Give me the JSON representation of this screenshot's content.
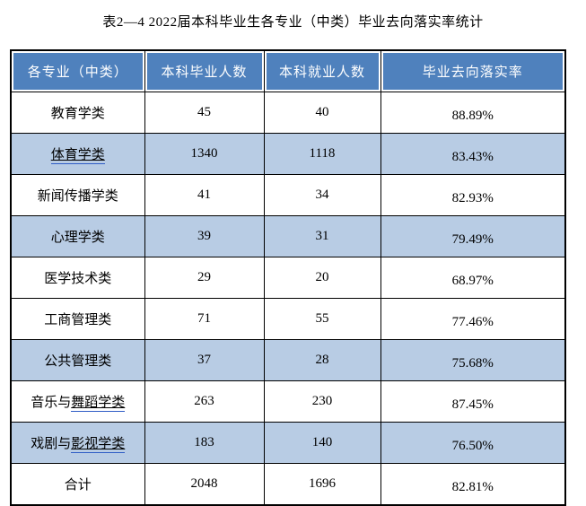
{
  "page": {
    "title": "表2—4 2022届本科毕业生各专业（中类）毕业去向落实率统计"
  },
  "table": {
    "headers": [
      "各专业（中类）",
      "本科毕业人数",
      "本科就业人数",
      "毕业去向落实率"
    ],
    "rows": [
      {
        "major_plain": "教育学类",
        "major_linked": "",
        "graduates": "45",
        "employed": "40",
        "rate": "88.89%",
        "shaded": false
      },
      {
        "major_plain": "",
        "major_linked": "体育学类",
        "graduates": "1340",
        "employed": "1118",
        "rate": "83.43%",
        "shaded": true
      },
      {
        "major_plain": "新闻传播学类",
        "major_linked": "",
        "graduates": "41",
        "employed": "34",
        "rate": "82.93%",
        "shaded": false
      },
      {
        "major_plain": "心理学类",
        "major_linked": "",
        "graduates": "39",
        "employed": "31",
        "rate": "79.49%",
        "shaded": true
      },
      {
        "major_plain": "医学技术类",
        "major_linked": "",
        "graduates": "29",
        "employed": "20",
        "rate": "68.97%",
        "shaded": false
      },
      {
        "major_plain": "工商管理类",
        "major_linked": "",
        "graduates": "71",
        "employed": "55",
        "rate": "77.46%",
        "shaded": false
      },
      {
        "major_plain": "公共管理类",
        "major_linked": "",
        "graduates": "37",
        "employed": "28",
        "rate": "75.68%",
        "shaded": true
      },
      {
        "major_plain": "音乐与",
        "major_linked": "舞蹈学类",
        "graduates": "263",
        "employed": "230",
        "rate": "87.45%",
        "shaded": false
      },
      {
        "major_plain": "戏剧与",
        "major_linked": "影视学类",
        "graduates": "183",
        "employed": "140",
        "rate": "76.50%",
        "shaded": true
      },
      {
        "major_plain": "合计",
        "major_linked": "",
        "graduates": "2048",
        "employed": "1696",
        "rate": "82.81%",
        "shaded": false
      }
    ]
  },
  "colors": {
    "header_bg": "#4F81BD",
    "header_text": "#FFFFFF",
    "alt_row_bg": "#B8CCE4",
    "border": "#000000",
    "link_underline": "#2E5CC5"
  }
}
